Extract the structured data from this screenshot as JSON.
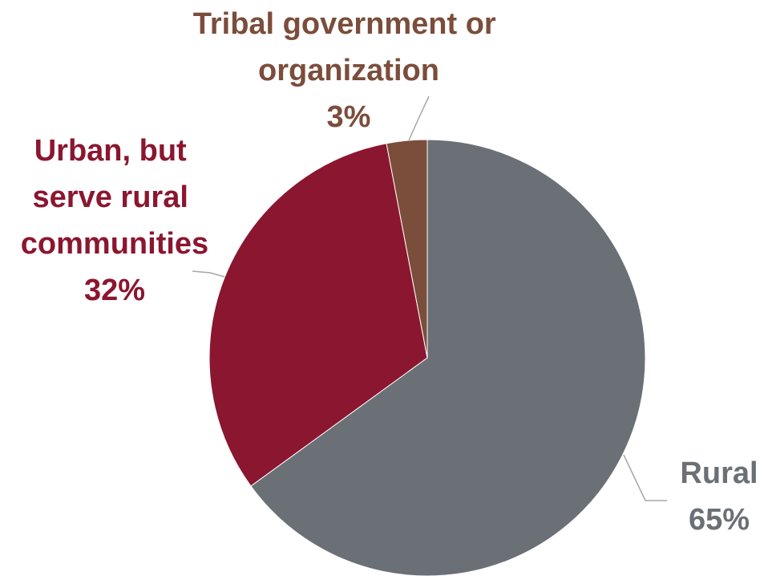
{
  "chart_data": {
    "type": "pie",
    "slices": [
      {
        "label_lines": [
          "Rural"
        ],
        "pct_label": "65%",
        "value": 65,
        "color": "#6b7077",
        "label_color": "#6b7077"
      },
      {
        "label_lines": [
          "Urban, but",
          "serve rural",
          "communities"
        ],
        "pct_label": "32%",
        "value": 32,
        "color": "#8b1630",
        "label_color": "#8b1630"
      },
      {
        "label_lines": [
          "Tribal government or",
          "organization"
        ],
        "pct_label": "3%",
        "value": 3,
        "color": "#7b4d3b",
        "label_color": "#7b4d3b"
      }
    ],
    "start_angle_deg": 0,
    "direction": "clockwise",
    "leader_line_color": "#a6a6a6"
  }
}
